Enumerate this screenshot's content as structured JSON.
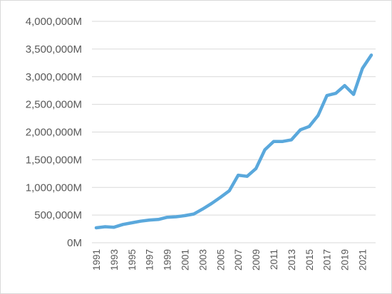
{
  "chart_data": {
    "type": "line",
    "title": "",
    "xlabel": "",
    "ylabel": "",
    "ylim": [
      0,
      4000000
    ],
    "grid": true,
    "legend": "none",
    "line_color": "#5aa8dc",
    "y_ticks": [
      {
        "value": 0,
        "label": "0M"
      },
      {
        "value": 500000,
        "label": "500,000M"
      },
      {
        "value": 1000000,
        "label": "1,000,000M"
      },
      {
        "value": 1500000,
        "label": "1,500,000M"
      },
      {
        "value": 2000000,
        "label": "2,000,000M"
      },
      {
        "value": 2500000,
        "label": "2,500,000M"
      },
      {
        "value": 3000000,
        "label": "3,000,000M"
      },
      {
        "value": 3500000,
        "label": "3,500,000M"
      },
      {
        "value": 4000000,
        "label": "4,000,000M"
      }
    ],
    "x_ticks": [
      "1991",
      "1993",
      "1995",
      "1997",
      "1999",
      "2001",
      "2003",
      "2005",
      "2007",
      "2009",
      "2011",
      "2013",
      "2015",
      "2017",
      "2019",
      "2021"
    ],
    "x": [
      1991,
      1992,
      1993,
      1994,
      1995,
      1996,
      1997,
      1998,
      1999,
      2000,
      2001,
      2002,
      2003,
      2004,
      2005,
      2006,
      2007,
      2008,
      2009,
      2010,
      2011,
      2012,
      2013,
      2014,
      2015,
      2016,
      2017,
      2018,
      2019,
      2020,
      2021,
      2022
    ],
    "series": [
      {
        "values": [
          270000,
          290000,
          280000,
          330000,
          360000,
          390000,
          410000,
          420000,
          460000,
          470000,
          490000,
          520000,
          610000,
          710000,
          820000,
          940000,
          1220000,
          1200000,
          1340000,
          1680000,
          1830000,
          1830000,
          1860000,
          2040000,
          2100000,
          2300000,
          2660000,
          2700000,
          2840000,
          2680000,
          3150000,
          3390000
        ]
      }
    ]
  }
}
